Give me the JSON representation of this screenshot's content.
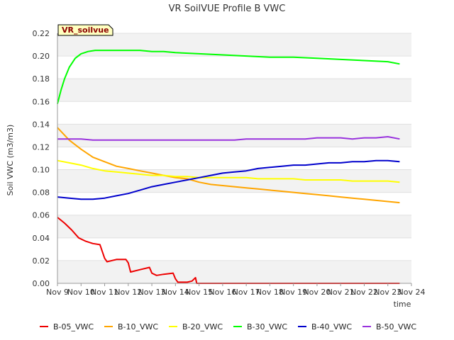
{
  "chart_data": {
    "type": "line",
    "title": "VR SoilVUE Profile B VWC",
    "xlabel": "time",
    "ylabel": "Soil VWC (m3/m3)",
    "badge": "VR_soilvue",
    "xlim": [
      9,
      24
    ],
    "ylim": [
      0,
      0.22
    ],
    "x_ticks": [
      9,
      10,
      11,
      12,
      13,
      14,
      15,
      16,
      17,
      18,
      19,
      20,
      21,
      22,
      23,
      24
    ],
    "x_tick_labels": [
      "Nov 9",
      "Nov 10",
      "Nov 11",
      "Nov 12",
      "Nov 13",
      "Nov 14",
      "Nov 15",
      "Nov 16",
      "Nov 17",
      "Nov 18",
      "Nov 19",
      "Nov 20",
      "Nov 21",
      "Nov 22",
      "Nov 23",
      "Nov 24"
    ],
    "y_ticks": [
      0,
      0.02,
      0.04,
      0.06,
      0.08,
      0.1,
      0.12,
      0.14,
      0.16,
      0.18,
      0.2,
      0.22
    ],
    "y_tick_labels": [
      "0.00",
      "0.02",
      "0.04",
      "0.06",
      "0.08",
      "0.10",
      "0.12",
      "0.14",
      "0.16",
      "0.18",
      "0.20",
      "0.22"
    ],
    "grid": true,
    "legend_position": "bottom",
    "series": [
      {
        "name": "B-05_VWC",
        "color": "#ee0000",
        "x": [
          9.0,
          9.3,
          9.6,
          9.9,
          10.2,
          10.5,
          10.8,
          11.0,
          11.1,
          11.5,
          11.9,
          12.0,
          12.1,
          12.5,
          12.9,
          13.0,
          13.2,
          13.5,
          13.9,
          14.0,
          14.1,
          14.5,
          14.7,
          14.85,
          14.9,
          15.5,
          16.5,
          18.0,
          20.0,
          22.0,
          23.5
        ],
        "y": [
          0.058,
          0.053,
          0.047,
          0.04,
          0.037,
          0.035,
          0.034,
          0.022,
          0.019,
          0.021,
          0.021,
          0.018,
          0.01,
          0.012,
          0.014,
          0.009,
          0.007,
          0.008,
          0.009,
          0.004,
          0.001,
          0.001,
          0.002,
          0.005,
          0.0,
          0.0,
          0.0,
          0.0,
          0.0,
          0.0,
          0.0
        ]
      },
      {
        "name": "B-10_VWC",
        "color": "#ffa500",
        "x": [
          9.0,
          9.5,
          10.0,
          10.5,
          11.0,
          11.5,
          12.0,
          12.5,
          13.0,
          13.5,
          14.0,
          14.5,
          15.0,
          15.5,
          16.0,
          16.5,
          17.0,
          17.5,
          18.0,
          18.5,
          19.0,
          19.5,
          20.0,
          20.5,
          21.0,
          21.5,
          22.0,
          22.5,
          23.0,
          23.5
        ],
        "y": [
          0.137,
          0.126,
          0.118,
          0.111,
          0.107,
          0.103,
          0.101,
          0.099,
          0.097,
          0.095,
          0.093,
          0.092,
          0.089,
          0.087,
          0.086,
          0.085,
          0.084,
          0.083,
          0.082,
          0.081,
          0.08,
          0.079,
          0.078,
          0.077,
          0.076,
          0.075,
          0.074,
          0.073,
          0.072,
          0.071
        ]
      },
      {
        "name": "B-20_VWC",
        "color": "#ffff00",
        "x": [
          9.0,
          9.5,
          10.0,
          10.5,
          11.0,
          11.5,
          12.0,
          12.5,
          13.0,
          13.5,
          14.0,
          14.5,
          15.0,
          15.5,
          16.0,
          16.5,
          17.0,
          17.5,
          18.0,
          18.5,
          19.0,
          19.5,
          20.0,
          20.5,
          21.0,
          21.5,
          22.0,
          22.5,
          23.0,
          23.5
        ],
        "y": [
          0.108,
          0.106,
          0.104,
          0.101,
          0.099,
          0.098,
          0.097,
          0.096,
          0.095,
          0.095,
          0.094,
          0.094,
          0.093,
          0.093,
          0.093,
          0.093,
          0.093,
          0.092,
          0.092,
          0.092,
          0.092,
          0.091,
          0.091,
          0.091,
          0.091,
          0.09,
          0.09,
          0.09,
          0.09,
          0.089
        ]
      },
      {
        "name": "B-30_VWC",
        "color": "#00ff00",
        "x": [
          9.0,
          9.15,
          9.3,
          9.5,
          9.75,
          10.0,
          10.3,
          10.6,
          11.0,
          11.5,
          12.0,
          12.5,
          13.0,
          13.5,
          14.0,
          15.0,
          16.0,
          17.0,
          18.0,
          19.0,
          20.0,
          21.0,
          22.0,
          23.0,
          23.5
        ],
        "y": [
          0.158,
          0.17,
          0.18,
          0.19,
          0.198,
          0.202,
          0.204,
          0.205,
          0.205,
          0.205,
          0.205,
          0.205,
          0.204,
          0.204,
          0.203,
          0.202,
          0.201,
          0.2,
          0.199,
          0.199,
          0.198,
          0.197,
          0.196,
          0.195,
          0.193
        ]
      },
      {
        "name": "B-40_VWC",
        "color": "#0000cc",
        "x": [
          9.0,
          9.5,
          10.0,
          10.5,
          11.0,
          11.5,
          12.0,
          12.5,
          13.0,
          13.5,
          14.0,
          14.5,
          15.0,
          15.5,
          16.0,
          16.5,
          17.0,
          17.5,
          18.0,
          18.5,
          19.0,
          19.5,
          20.0,
          20.5,
          21.0,
          21.5,
          22.0,
          22.5,
          23.0,
          23.5
        ],
        "y": [
          0.076,
          0.075,
          0.074,
          0.074,
          0.075,
          0.077,
          0.079,
          0.082,
          0.085,
          0.087,
          0.089,
          0.091,
          0.093,
          0.095,
          0.097,
          0.098,
          0.099,
          0.101,
          0.102,
          0.103,
          0.104,
          0.104,
          0.105,
          0.106,
          0.106,
          0.107,
          0.107,
          0.108,
          0.108,
          0.107
        ]
      },
      {
        "name": "B-50_VWC",
        "color": "#9933dd",
        "x": [
          9.0,
          9.5,
          10.0,
          10.5,
          11.0,
          11.5,
          12.0,
          12.5,
          13.0,
          13.5,
          14.0,
          14.5,
          15.0,
          15.5,
          16.0,
          16.5,
          17.0,
          17.5,
          18.0,
          18.5,
          19.0,
          19.5,
          20.0,
          20.5,
          21.0,
          21.5,
          22.0,
          22.5,
          23.0,
          23.5
        ],
        "y": [
          0.127,
          0.127,
          0.127,
          0.126,
          0.126,
          0.126,
          0.126,
          0.126,
          0.126,
          0.126,
          0.126,
          0.126,
          0.126,
          0.126,
          0.126,
          0.126,
          0.127,
          0.127,
          0.127,
          0.127,
          0.127,
          0.127,
          0.128,
          0.128,
          0.128,
          0.127,
          0.128,
          0.128,
          0.129,
          0.127
        ]
      }
    ]
  }
}
